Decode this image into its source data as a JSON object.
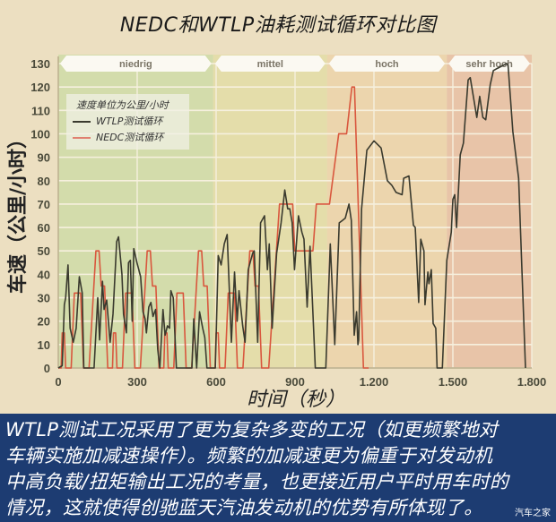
{
  "chart_data": {
    "type": "line",
    "title": "NEDC和WTLP油耗测试循环对比图",
    "xlabel": "时间（秒）",
    "ylabel": "车速（公里/小时）",
    "xlim": [
      0,
      1800
    ],
    "ylim": [
      0,
      130
    ],
    "x_ticks": [
      0,
      300,
      600,
      900,
      1200,
      1500,
      1800
    ],
    "x_tick_labels": [
      "0",
      "300",
      "600",
      "900",
      "1.200",
      "1.500",
      "1.800"
    ],
    "y_ticks": [
      0,
      10,
      20,
      30,
      40,
      50,
      60,
      70,
      80,
      90,
      100,
      110,
      120,
      130
    ],
    "grid": true,
    "legend": {
      "title": "速度单位为公里/小时",
      "placement": "top-left"
    },
    "phases": [
      {
        "label": "niedrig",
        "start": 0,
        "end": 589,
        "color": "#d3dcab"
      },
      {
        "label": "mittel",
        "start": 589,
        "end": 1022,
        "color": "#e4ddaa"
      },
      {
        "label": "hoch",
        "start": 1022,
        "end": 1477,
        "color": "#ecd5ad"
      },
      {
        "label": "sehr hoch",
        "start": 1477,
        "end": 1800,
        "color": "#e8c4a8"
      }
    ],
    "series": [
      {
        "name": "WTLP测试循环",
        "color": "#3a3a2e",
        "points": [
          [
            0,
            0
          ],
          [
            15,
            1
          ],
          [
            23,
            27
          ],
          [
            28,
            30
          ],
          [
            37,
            44
          ],
          [
            45,
            17
          ],
          [
            57,
            11
          ],
          [
            68,
            17
          ],
          [
            80,
            39
          ],
          [
            91,
            32
          ],
          [
            97,
            0
          ],
          [
            136,
            0
          ],
          [
            150,
            30
          ],
          [
            157,
            12
          ],
          [
            168,
            37
          ],
          [
            174,
            25
          ],
          [
            184,
            29
          ],
          [
            197,
            11
          ],
          [
            208,
            23
          ],
          [
            222,
            54
          ],
          [
            229,
            56
          ],
          [
            242,
            40
          ],
          [
            248,
            23
          ],
          [
            259,
            15
          ],
          [
            267,
            45
          ],
          [
            274,
            46
          ],
          [
            281,
            20
          ],
          [
            287,
            51
          ],
          [
            299,
            45
          ],
          [
            313,
            39
          ],
          [
            322,
            24
          ],
          [
            330,
            21
          ],
          [
            335,
            15
          ],
          [
            344,
            26
          ],
          [
            352,
            28
          ],
          [
            360,
            22
          ],
          [
            370,
            25
          ],
          [
            378,
            8
          ],
          [
            386,
            0
          ],
          [
            398,
            25
          ],
          [
            406,
            14
          ],
          [
            415,
            18
          ],
          [
            423,
            17
          ],
          [
            428,
            33
          ],
          [
            437,
            30
          ],
          [
            449,
            0
          ],
          [
            508,
            0
          ],
          [
            515,
            21
          ],
          [
            526,
            0
          ],
          [
            537,
            24
          ],
          [
            549,
            17
          ],
          [
            557,
            13
          ],
          [
            565,
            0
          ],
          [
            597,
            0
          ],
          [
            608,
            48
          ],
          [
            619,
            44
          ],
          [
            631,
            53
          ],
          [
            642,
            57
          ],
          [
            658,
            11
          ],
          [
            670,
            41
          ],
          [
            680,
            20
          ],
          [
            687,
            33
          ],
          [
            701,
            18
          ],
          [
            710,
            11
          ],
          [
            722,
            42
          ],
          [
            739,
            49
          ],
          [
            745,
            50
          ],
          [
            758,
            11
          ],
          [
            769,
            62
          ],
          [
            784,
            65
          ],
          [
            795,
            42
          ],
          [
            802,
            53
          ],
          [
            813,
            17
          ],
          [
            830,
            49
          ],
          [
            847,
            62
          ],
          [
            861,
            76
          ],
          [
            872,
            68
          ],
          [
            880,
            68
          ],
          [
            889,
            62
          ],
          [
            898,
            42
          ],
          [
            913,
            65
          ],
          [
            926,
            58
          ],
          [
            934,
            55
          ],
          [
            946,
            26
          ],
          [
            957,
            52
          ],
          [
            977,
            0
          ],
          [
            1017,
            0
          ],
          [
            1034,
            53
          ],
          [
            1051,
            10
          ],
          [
            1068,
            62
          ],
          [
            1080,
            63
          ],
          [
            1091,
            64
          ],
          [
            1105,
            70
          ],
          [
            1114,
            63
          ],
          [
            1125,
            14
          ],
          [
            1134,
            24
          ],
          [
            1139,
            10
          ],
          [
            1142,
            12
          ],
          [
            1153,
            68
          ],
          [
            1173,
            93
          ],
          [
            1200,
            97
          ],
          [
            1227,
            94
          ],
          [
            1251,
            80
          ],
          [
            1268,
            78
          ],
          [
            1284,
            75
          ],
          [
            1307,
            74
          ],
          [
            1313,
            81
          ],
          [
            1333,
            82
          ],
          [
            1350,
            61
          ],
          [
            1357,
            60
          ],
          [
            1370,
            28
          ],
          [
            1378,
            55
          ],
          [
            1390,
            50
          ],
          [
            1394,
            27
          ],
          [
            1405,
            41
          ],
          [
            1409,
            36
          ],
          [
            1418,
            42
          ],
          [
            1425,
            19
          ],
          [
            1435,
            17
          ],
          [
            1440,
            0
          ],
          [
            1460,
            0
          ],
          [
            1477,
            46
          ],
          [
            1494,
            58
          ],
          [
            1500,
            72
          ],
          [
            1507,
            74
          ],
          [
            1514,
            60
          ],
          [
            1528,
            91
          ],
          [
            1540,
            96
          ],
          [
            1558,
            123
          ],
          [
            1566,
            124
          ],
          [
            1591,
            107
          ],
          [
            1602,
            116
          ],
          [
            1614,
            107
          ],
          [
            1625,
            106
          ],
          [
            1642,
            121
          ],
          [
            1654,
            127
          ],
          [
            1670,
            128
          ],
          [
            1687,
            129
          ],
          [
            1705,
            130
          ],
          [
            1710,
            129
          ],
          [
            1728,
            101
          ],
          [
            1750,
            81
          ],
          [
            1776,
            0
          ]
        ]
      },
      {
        "name": "NEDC测试循环",
        "color": "#d9573e",
        "ece_cycle": [
          [
            0,
            0
          ],
          [
            11,
            0
          ],
          [
            15,
            15
          ],
          [
            23,
            15
          ],
          [
            28,
            0
          ],
          [
            49,
            0
          ],
          [
            61,
            32
          ],
          [
            85,
            32
          ],
          [
            96,
            0
          ],
          [
            117,
            0
          ],
          [
            143,
            50
          ],
          [
            155,
            50
          ],
          [
            163,
            35
          ],
          [
            176,
            35
          ],
          [
            188,
            0
          ],
          [
            195,
            0
          ]
        ],
        "ece_repeats": 4,
        "eudc": [
          [
            780,
            0
          ],
          [
            800,
            0
          ],
          [
            841,
            70
          ],
          [
            891,
            70
          ],
          [
            899,
            50
          ],
          [
            968,
            50
          ],
          [
            981,
            70
          ],
          [
            1031,
            70
          ],
          [
            1066,
            100
          ],
          [
            1096,
            100
          ],
          [
            1116,
            120
          ],
          [
            1126,
            120
          ],
          [
            1160,
            0
          ],
          [
            1180,
            0
          ]
        ]
      }
    ]
  },
  "note": {
    "lines": [
      "WTLP测试工况采用了更为复杂多变的工况（如更频繁地对",
      "车辆实施加减速操作）。频繁的加减速更为偏重于对发动机",
      "中高负载/扭矩输出工况的考量，也更接近用户平时用车时的",
      "情况，这就使得创驰蓝天汽油发动机的优势有所体现了。"
    ],
    "watermark": "汽车之家"
  }
}
